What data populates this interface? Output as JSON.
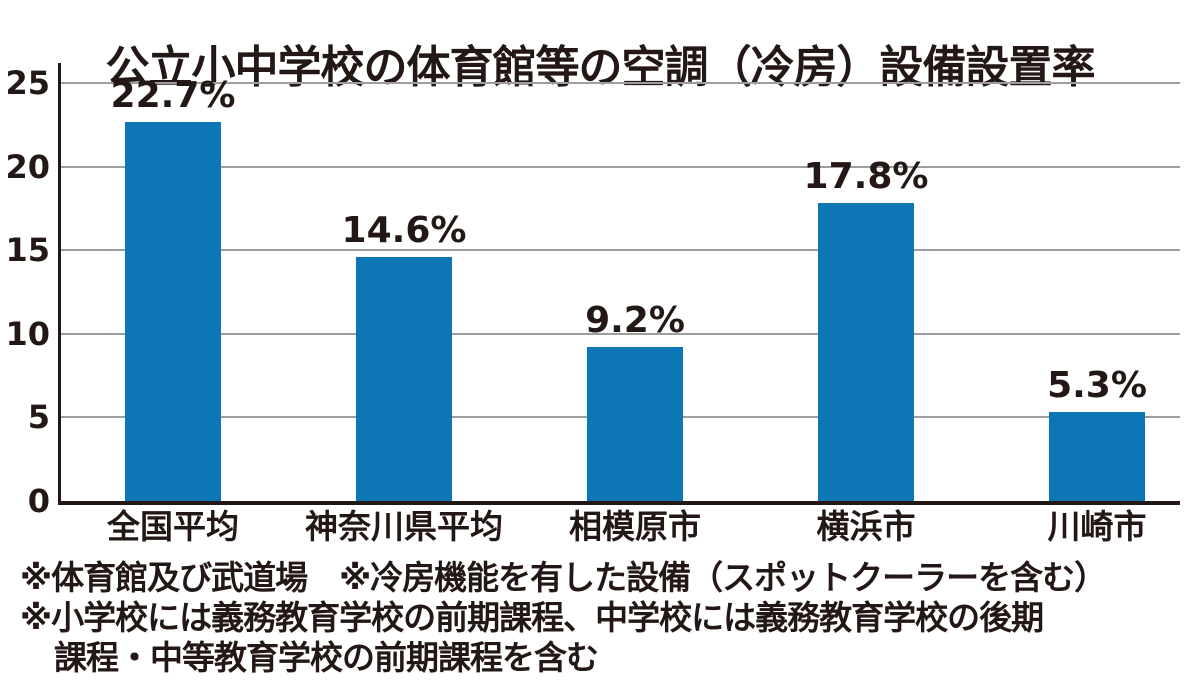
{
  "colors": {
    "bar": "#0d76b4",
    "text": "#231815",
    "axis": "#231815",
    "gridline": "#9e9e9f",
    "background": "#ffffff"
  },
  "chart_data": {
    "type": "bar",
    "title": "公立小中学校の体育館等の空調（冷房）設備設置率",
    "categories": [
      "全国平均",
      "神奈川県平均",
      "相模原市",
      "横浜市",
      "川崎市"
    ],
    "values": [
      22.7,
      14.6,
      9.2,
      17.8,
      5.3
    ],
    "value_labels": [
      "22.7%",
      "14.6%",
      "9.2%",
      "17.8%",
      "5.3%"
    ],
    "xlabel": "",
    "ylabel": "",
    "yticks": [
      "0",
      "5",
      "10",
      "15",
      "20",
      "25"
    ],
    "ytick_values": [
      0,
      5,
      10,
      15,
      20,
      25
    ],
    "ylim": [
      0,
      26.2
    ],
    "grid": true,
    "legend_position": "none",
    "footnotes": [
      "※体育館及び武道場　※冷房機能を有した設備（スポットクーラーを含む）",
      "※小学校には義務教育学校の前期課程、中学校には義務教育学校の後期",
      "課程・中等教育学校の前期課程を含む"
    ]
  }
}
